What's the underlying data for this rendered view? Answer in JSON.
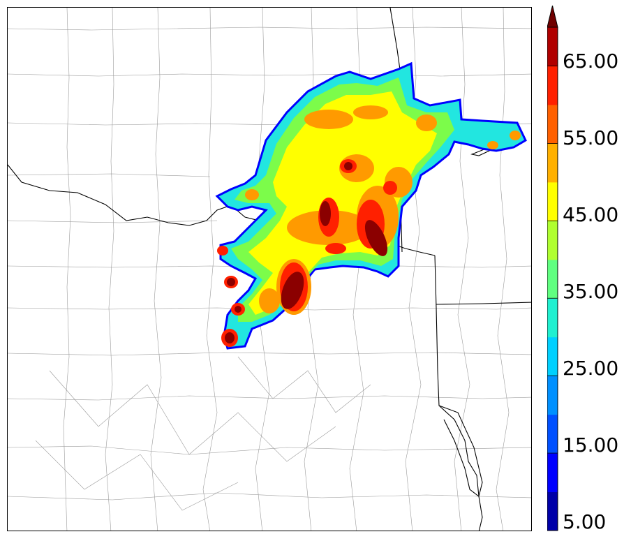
{
  "colorbar": {
    "ticks": [
      "5.00",
      "15.00",
      "25.00",
      "35.00",
      "45.00",
      "55.00",
      "65.00"
    ],
    "colors": [
      "#0000a8",
      "#0000ff",
      "#0050ff",
      "#0090ff",
      "#00d0ff",
      "#20f0d0",
      "#60ff80",
      "#b0ff30",
      "#ffff00",
      "#ffb000",
      "#ff6000",
      "#ff2000",
      "#b00000",
      "#700000"
    ]
  },
  "field_colors": {
    "blue_edge": "#0000ff",
    "cyan": "#22e6e0",
    "green": "#7cfc4a",
    "yellow": "#ffff00",
    "orange": "#ff9a00",
    "red": "#ff2000",
    "darkred": "#8b0000"
  }
}
